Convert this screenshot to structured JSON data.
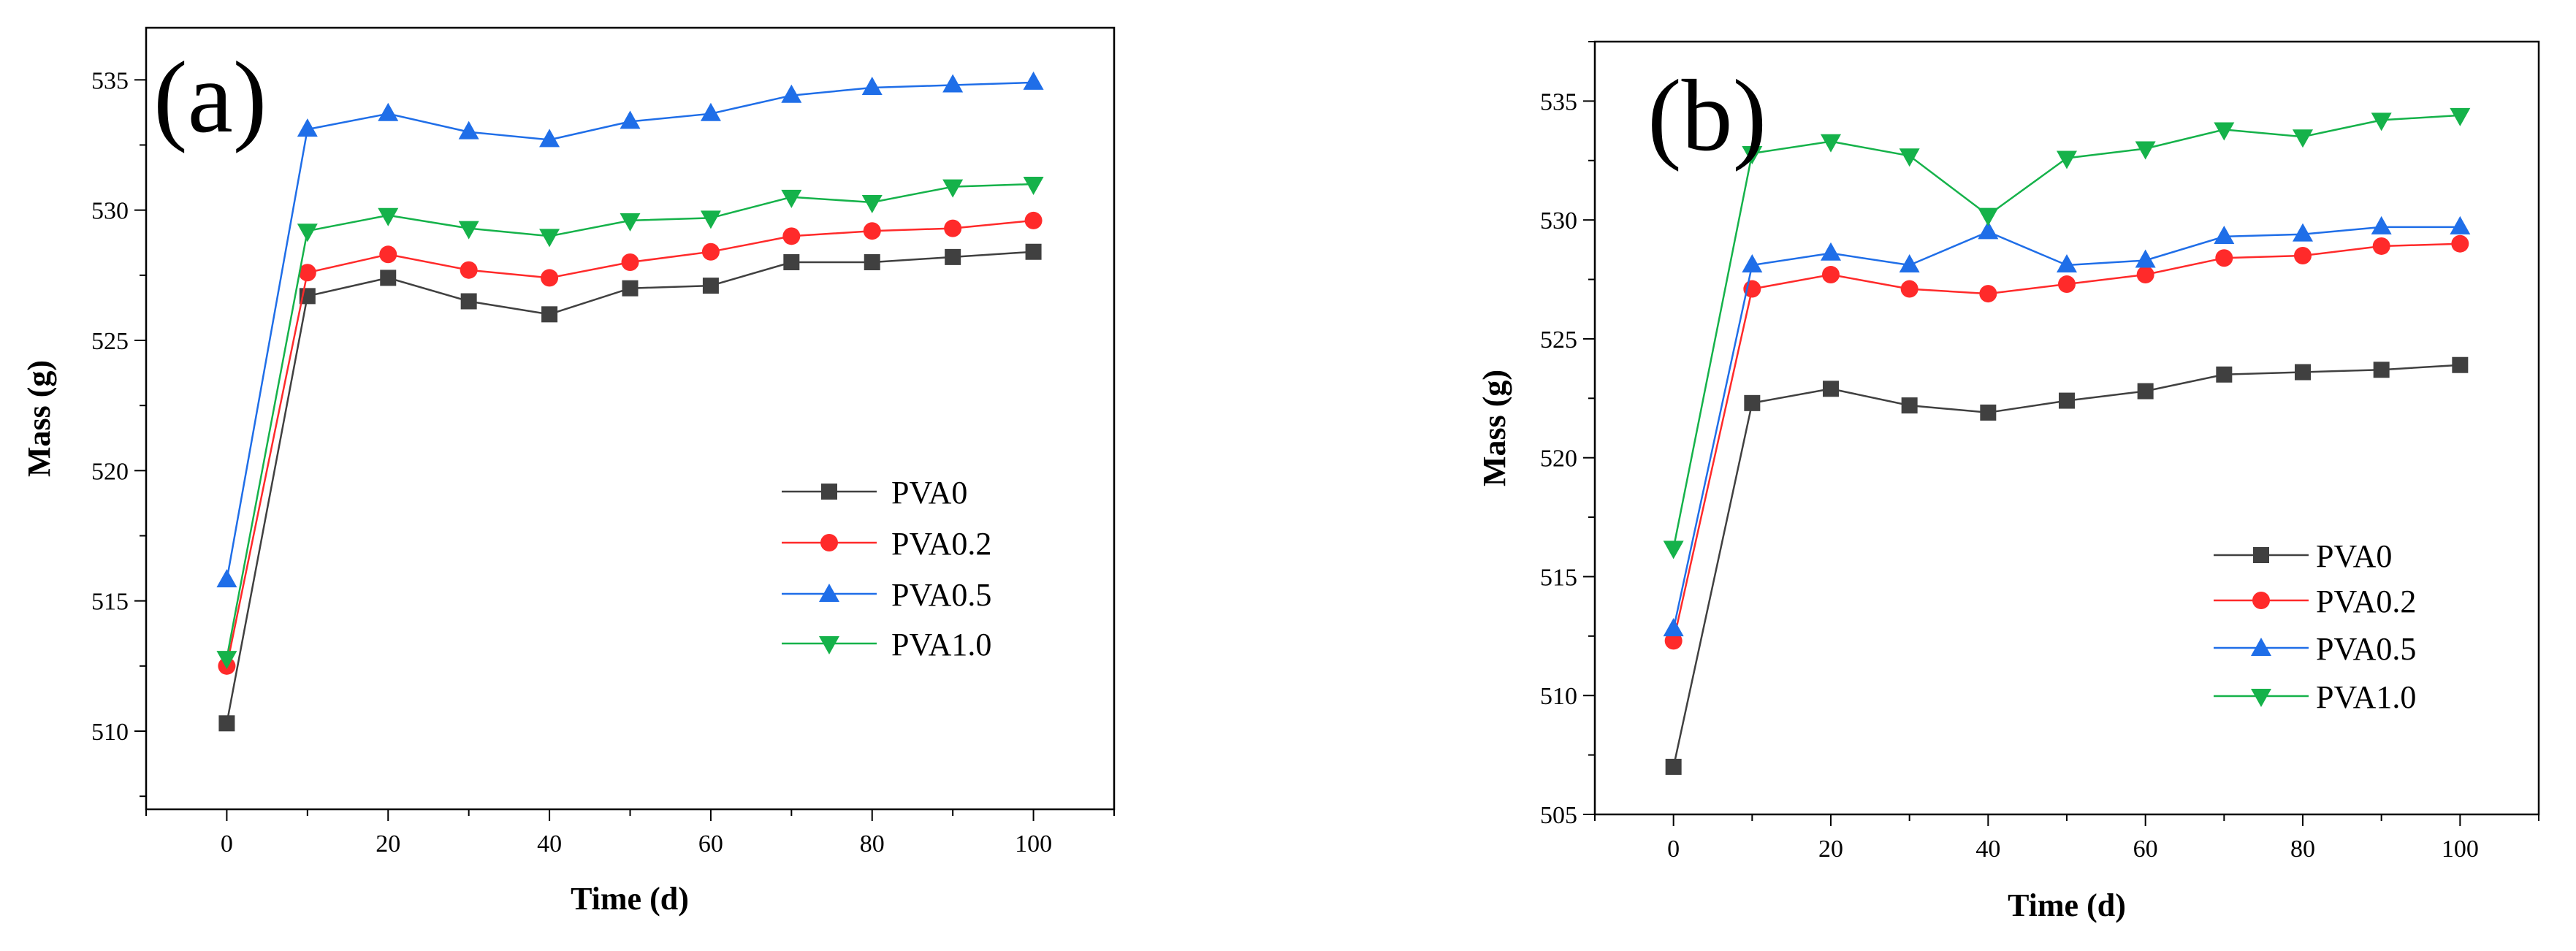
{
  "chart_data": [
    {
      "type": "line",
      "panel_label": "(a)",
      "xlabel": "Time (d)",
      "ylabel": "Mass (g)",
      "xlim": [
        -10,
        110
      ],
      "ylim": [
        507,
        537
      ],
      "x_ticks": [
        0,
        20,
        40,
        60,
        80,
        100
      ],
      "y_ticks": [
        510,
        515,
        520,
        525,
        530,
        535
      ],
      "x": [
        0,
        10,
        20,
        30,
        40,
        50,
        60,
        70,
        80,
        90,
        100
      ],
      "legend_position": "center-right",
      "series": [
        {
          "name": "PVA0",
          "color": "#404040",
          "marker": "square",
          "values": [
            510.3,
            526.7,
            527.4,
            526.5,
            526.0,
            527.0,
            527.1,
            528.0,
            528.0,
            528.2,
            528.4
          ]
        },
        {
          "name": "PVA0.2",
          "color": "#ff2a2a",
          "marker": "circle",
          "values": [
            512.5,
            527.6,
            528.3,
            527.7,
            527.4,
            528.0,
            528.4,
            529.0,
            529.2,
            529.3,
            529.6
          ]
        },
        {
          "name": "PVA0.5",
          "color": "#1f6ee8",
          "marker": "triangle-up",
          "values": [
            515.8,
            533.1,
            533.7,
            533.0,
            532.7,
            533.4,
            533.7,
            534.4,
            534.7,
            534.8,
            534.9
          ]
        },
        {
          "name": "PVA1.0",
          "color": "#15b24a",
          "marker": "triangle-down",
          "values": [
            512.8,
            529.2,
            529.8,
            529.3,
            529.0,
            529.6,
            529.7,
            530.5,
            530.3,
            530.9,
            531.0
          ]
        }
      ]
    },
    {
      "type": "line",
      "panel_label": "(b)",
      "xlabel": "Time (d)",
      "ylabel": "Mass (g)",
      "xlim": [
        -10,
        110
      ],
      "ylim": [
        505,
        537.5
      ],
      "x_ticks": [
        0,
        20,
        40,
        60,
        80,
        100
      ],
      "y_ticks": [
        505,
        510,
        515,
        520,
        525,
        530,
        535
      ],
      "x": [
        0,
        10,
        20,
        30,
        40,
        50,
        60,
        70,
        80,
        90,
        100
      ],
      "legend_position": "bottom-right",
      "series": [
        {
          "name": "PVA0",
          "color": "#404040",
          "marker": "square",
          "values": [
            507.0,
            522.3,
            522.9,
            522.2,
            521.9,
            522.4,
            522.8,
            523.5,
            523.6,
            523.7,
            523.9
          ]
        },
        {
          "name": "PVA0.2",
          "color": "#ff2a2a",
          "marker": "circle",
          "values": [
            512.3,
            527.1,
            527.7,
            527.1,
            526.9,
            527.3,
            527.7,
            528.4,
            528.5,
            528.9,
            529.0
          ]
        },
        {
          "name": "PVA0.5",
          "color": "#1f6ee8",
          "marker": "triangle-up",
          "values": [
            512.8,
            528.1,
            528.6,
            528.1,
            529.5,
            528.1,
            528.3,
            529.3,
            529.4,
            529.7,
            529.7
          ]
        },
        {
          "name": "PVA1.0",
          "color": "#15b24a",
          "marker": "triangle-down",
          "values": [
            516.2,
            532.8,
            533.3,
            532.7,
            530.2,
            532.6,
            533.0,
            533.8,
            533.5,
            534.2,
            534.4
          ]
        }
      ]
    }
  ]
}
